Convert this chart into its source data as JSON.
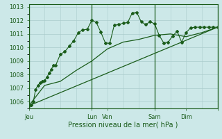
{
  "xlabel": "Pression niveau de la mer( hPa )",
  "bg_color": "#cce8e8",
  "grid_color": "#aacccc",
  "line_color": "#1a5c1a",
  "ylim": [
    1005.5,
    1013.2
  ],
  "xlim": [
    0,
    168
  ],
  "yticks": [
    1006,
    1007,
    1008,
    1009,
    1010,
    1011,
    1012,
    1013
  ],
  "xtick_pos": [
    0,
    56,
    70,
    112,
    140,
    168
  ],
  "xtick_labels": [
    "Jeu",
    "Lun",
    "Ven",
    "Sam",
    "Dim",
    ""
  ],
  "vlines": [
    56,
    112,
    168
  ],
  "series1_x": [
    0,
    2,
    4,
    6,
    8,
    10,
    12,
    14,
    16,
    18,
    20,
    22,
    24,
    28,
    32,
    36,
    40,
    44,
    48,
    52,
    56,
    60,
    64,
    68,
    72,
    76,
    80,
    84,
    88,
    92,
    96,
    100,
    104,
    108,
    112,
    116,
    120,
    124,
    128,
    132,
    136,
    140,
    144,
    148,
    152,
    156,
    160,
    164,
    168
  ],
  "series1_y": [
    1005.7,
    1005.75,
    1006.0,
    1006.9,
    1007.2,
    1007.4,
    1007.5,
    1007.55,
    1007.8,
    1008.1,
    1008.4,
    1008.7,
    1008.7,
    1009.5,
    1009.7,
    1010.1,
    1010.5,
    1011.1,
    1011.3,
    1011.35,
    1012.0,
    1011.85,
    1011.15,
    1010.35,
    1010.3,
    1011.65,
    1011.7,
    1011.8,
    1011.85,
    1012.55,
    1012.6,
    1011.9,
    1011.7,
    1011.9,
    1011.75,
    1010.9,
    1010.35,
    1010.4,
    1010.85,
    1011.2,
    1010.4,
    1011.1,
    1011.45,
    1011.5,
    1011.5,
    1011.5,
    1011.5,
    1011.5,
    1011.5
  ],
  "series2_x": [
    0,
    168
  ],
  "series2_y": [
    1005.7,
    1011.5
  ],
  "series3_x": [
    0,
    14,
    28,
    42,
    56,
    70,
    84,
    98,
    112,
    126,
    140,
    154,
    168
  ],
  "series3_y": [
    1005.7,
    1007.2,
    1007.5,
    1008.3,
    1009.0,
    1009.9,
    1010.4,
    1010.6,
    1010.9,
    1011.0,
    1010.8,
    1011.1,
    1011.5
  ]
}
